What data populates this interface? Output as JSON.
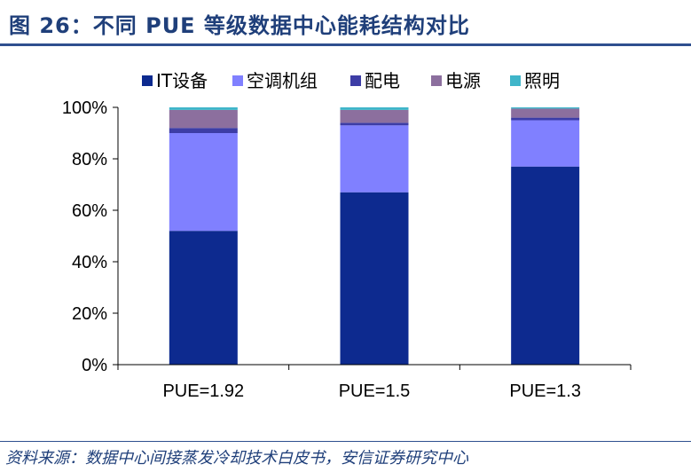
{
  "header": {
    "title": "图 26：不同 PUE 等级数据中心能耗结构对比"
  },
  "footer": {
    "source": "资料来源：数据中心间接蒸发冷却技术白皮书，安信证券研究中心"
  },
  "chart_data": {
    "type": "bar",
    "stacked": true,
    "categories": [
      "PUE=1.92",
      "PUE=1.5",
      "PUE=1.3"
    ],
    "series": [
      {
        "name": "IT设备",
        "color": "#0d2a8f",
        "values": [
          52,
          67,
          77
        ]
      },
      {
        "name": "空调机组",
        "color": "#8080ff",
        "values": [
          38,
          26,
          18
        ]
      },
      {
        "name": "配电",
        "color": "#3d3da6",
        "values": [
          2,
          1,
          1
        ]
      },
      {
        "name": "电源",
        "color": "#8c6f9e",
        "values": [
          7,
          5,
          3.5
        ]
      },
      {
        "name": "照明",
        "color": "#3fb5c9",
        "values": [
          1,
          1,
          0.5
        ]
      }
    ],
    "yticks": [
      "0%",
      "20%",
      "40%",
      "60%",
      "80%",
      "100%"
    ],
    "ylim": [
      0,
      100
    ],
    "legend_position": "top",
    "grid": false
  }
}
